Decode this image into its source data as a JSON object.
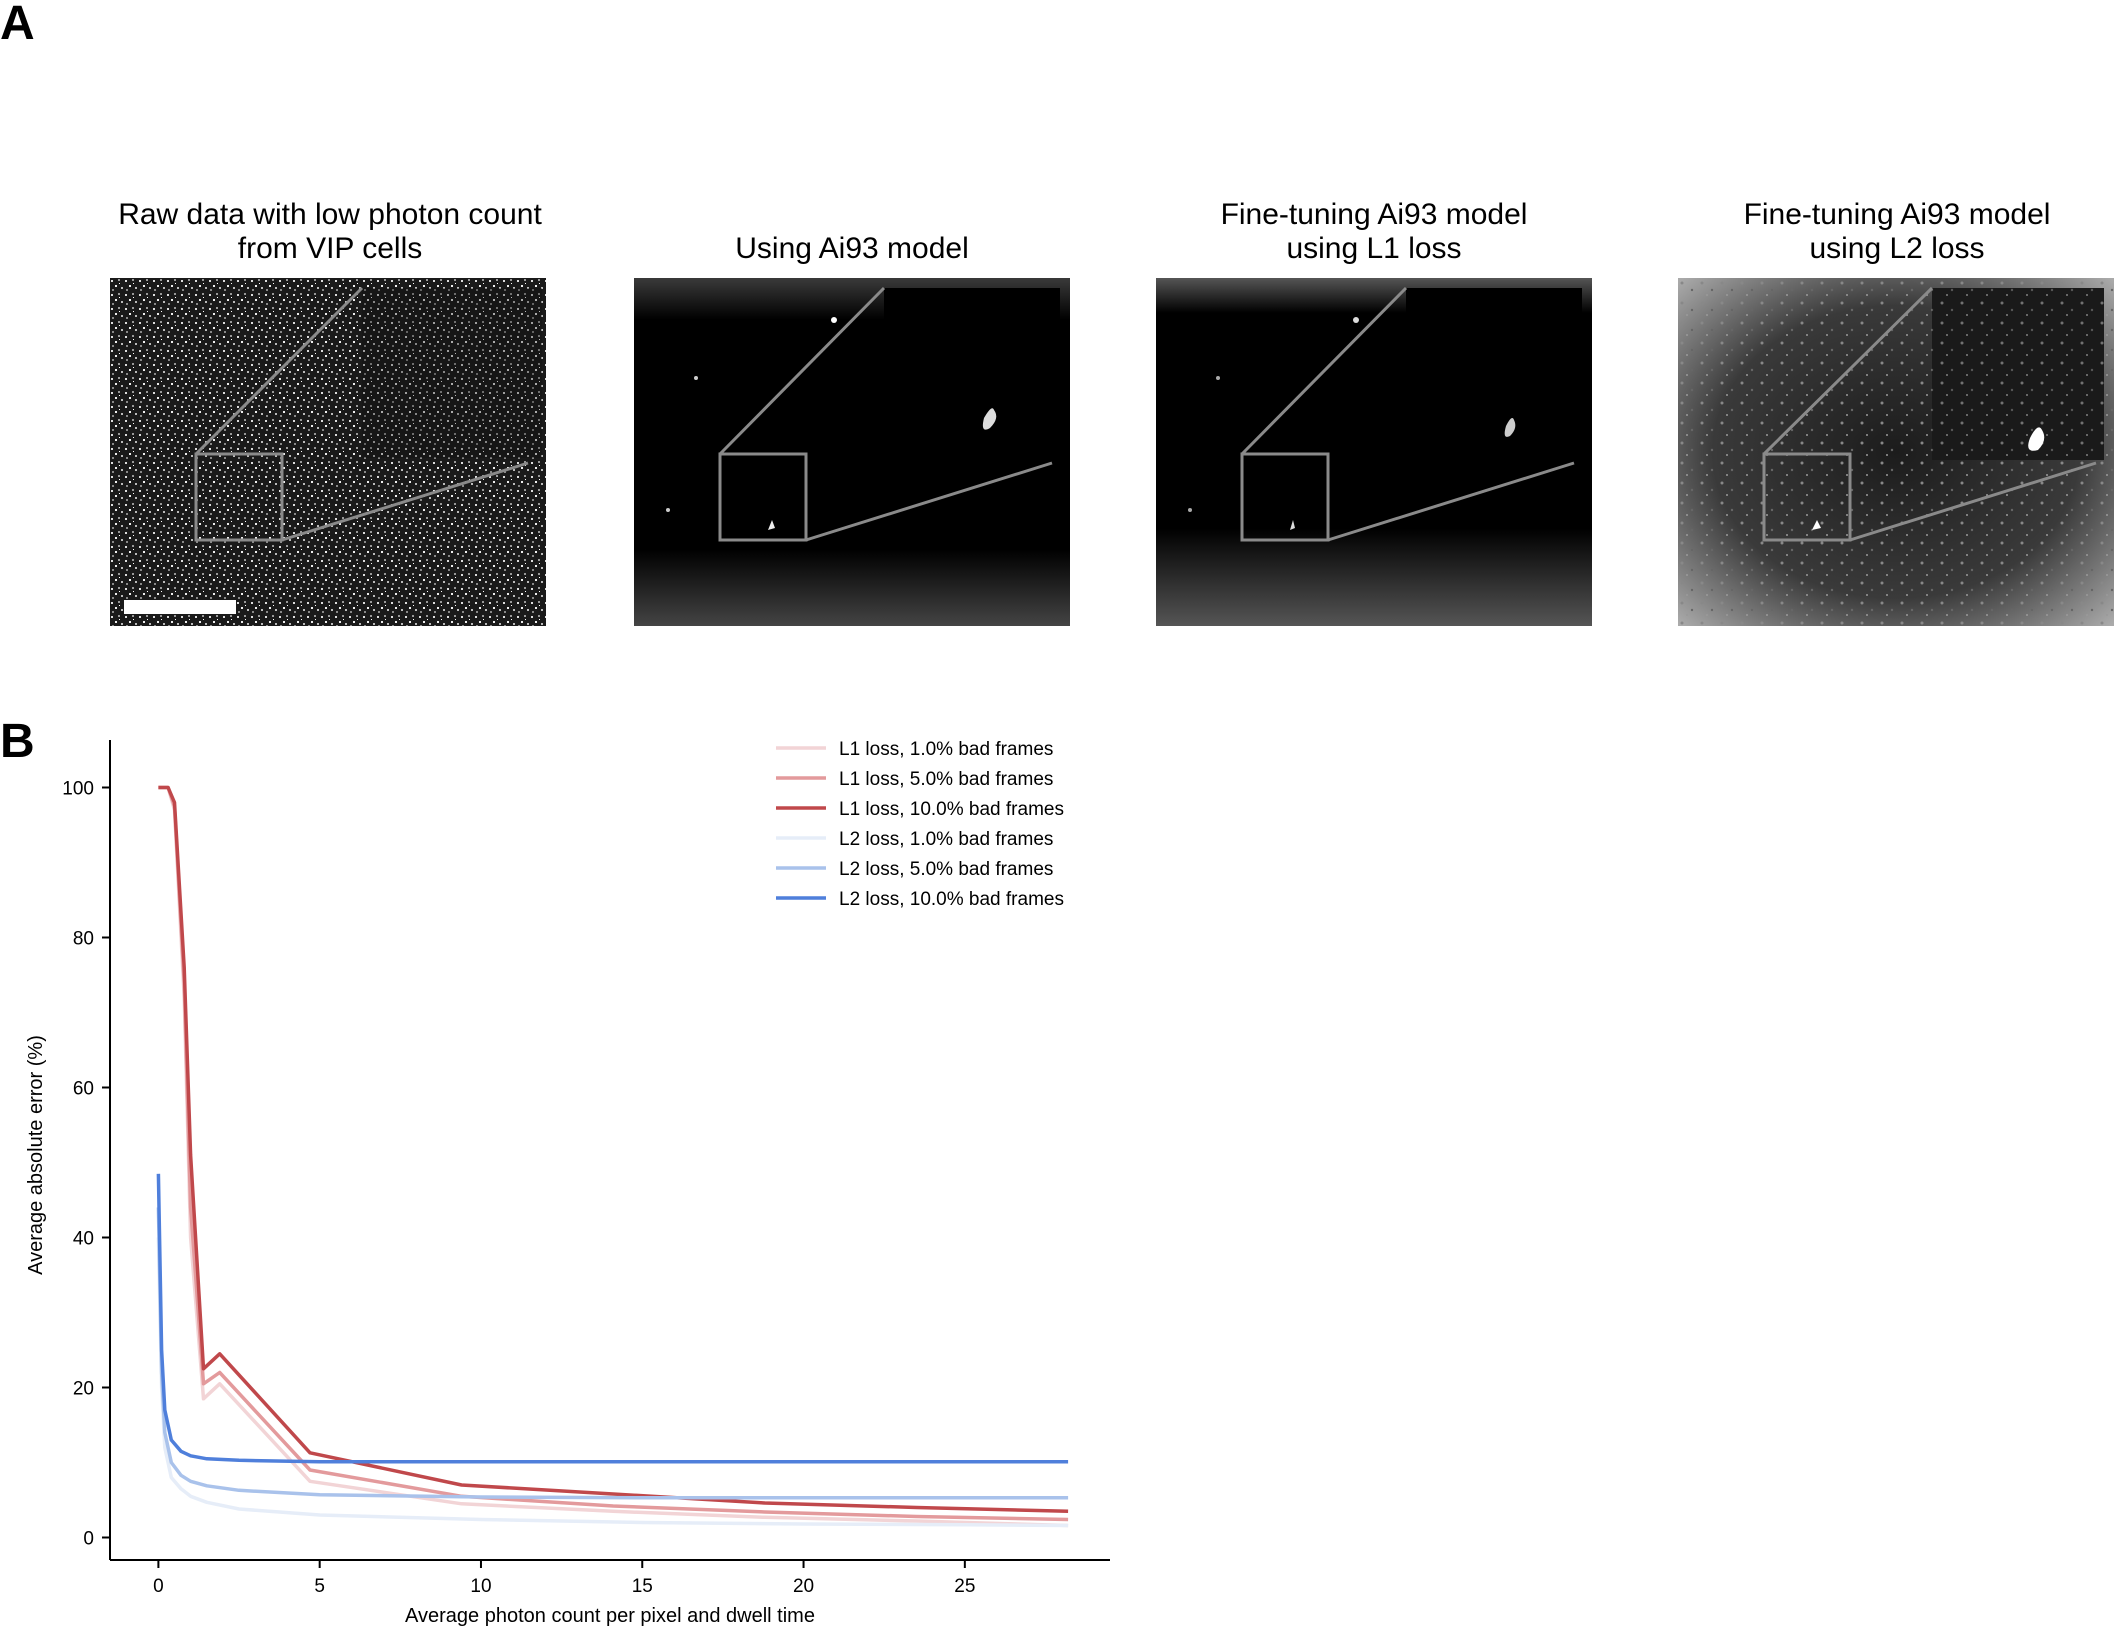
{
  "panel_labels": {
    "a": "A",
    "b": "B"
  },
  "panel_a": {
    "images": [
      {
        "title_line1": "Raw data with low photon count",
        "title_line2": "from VIP cells"
      },
      {
        "title_line1": "Using Ai93 model",
        "title_line2": ""
      },
      {
        "title_line1": "Fine-tuning Ai93 model",
        "title_line2": "using L1 loss"
      },
      {
        "title_line1": "Fine-tuning Ai93 model",
        "title_line2": "using L2 loss"
      }
    ]
  },
  "chart_data": {
    "type": "line",
    "xlabel": "Average photon count per pixel and dwell time",
    "ylabel": "Average absolute error (%)",
    "xlim": [
      -1.5,
      29.5
    ],
    "ylim": [
      -3,
      105
    ],
    "xticks": [
      0,
      5,
      10,
      15,
      20,
      25
    ],
    "yticks": [
      0,
      20,
      40,
      60,
      80,
      100
    ],
    "grid": false,
    "legend_position": "top-right",
    "series": [
      {
        "name": "L1 loss, 1.0% bad frames",
        "color": "#f2d4d6",
        "x": [
          0,
          0.3,
          0.5,
          0.8,
          1.0,
          1.4,
          1.9,
          4.7,
          9.4,
          14.1,
          18.8,
          23.5,
          28.2
        ],
        "y": [
          100,
          100,
          97,
          72,
          40,
          18.5,
          20.5,
          7.5,
          4.5,
          3.5,
          2.7,
          2.2,
          1.6
        ]
      },
      {
        "name": "L1 loss, 5.0% bad frames",
        "color": "#e39a9c",
        "x": [
          0,
          0.3,
          0.5,
          0.8,
          1.0,
          1.4,
          1.9,
          4.7,
          9.4,
          14.1,
          18.8,
          23.5,
          28.2
        ],
        "y": [
          100,
          100,
          97.5,
          74,
          44,
          20.5,
          22,
          9,
          5.5,
          4.2,
          3.4,
          2.8,
          2.4
        ]
      },
      {
        "name": "L1 loss, 10.0% bad frames",
        "color": "#c0484b",
        "x": [
          0,
          0.3,
          0.5,
          0.8,
          1.0,
          1.4,
          1.9,
          4.7,
          9.4,
          14.1,
          18.8,
          23.5,
          28.2
        ],
        "y": [
          100,
          100,
          98,
          76,
          51,
          22.5,
          24.5,
          11.3,
          7,
          5.8,
          4.6,
          4,
          3.5
        ]
      },
      {
        "name": "L2 loss, 1.0% bad frames",
        "color": "#e6edf8",
        "x": [
          0,
          0.1,
          0.2,
          0.4,
          0.7,
          1.0,
          1.5,
          2.5,
          5,
          10,
          15,
          20,
          25,
          28.2
        ],
        "y": [
          40,
          20,
          12,
          8,
          6.5,
          5.5,
          4.7,
          3.8,
          3,
          2.4,
          2,
          1.8,
          1.7,
          1.6
        ]
      },
      {
        "name": "L2 loss, 5.0% bad frames",
        "color": "#a9c2eb",
        "x": [
          0,
          0.1,
          0.2,
          0.4,
          0.7,
          1.0,
          1.5,
          2.5,
          5,
          10,
          15,
          20,
          25,
          28.2
        ],
        "y": [
          44,
          22,
          14,
          10,
          8.3,
          7.5,
          6.9,
          6.3,
          5.7,
          5.4,
          5.3,
          5.3,
          5.3,
          5.3
        ]
      },
      {
        "name": "L2 loss, 10.0% bad frames",
        "color": "#4f7fdb",
        "x": [
          0,
          0.1,
          0.2,
          0.4,
          0.7,
          1.0,
          1.5,
          2.5,
          5,
          10,
          15,
          20,
          25,
          28.2
        ],
        "y": [
          48.5,
          25,
          17,
          13,
          11.5,
          10.9,
          10.5,
          10.3,
          10.1,
          10.1,
          10.1,
          10.1,
          10.1,
          10.1
        ]
      }
    ]
  }
}
